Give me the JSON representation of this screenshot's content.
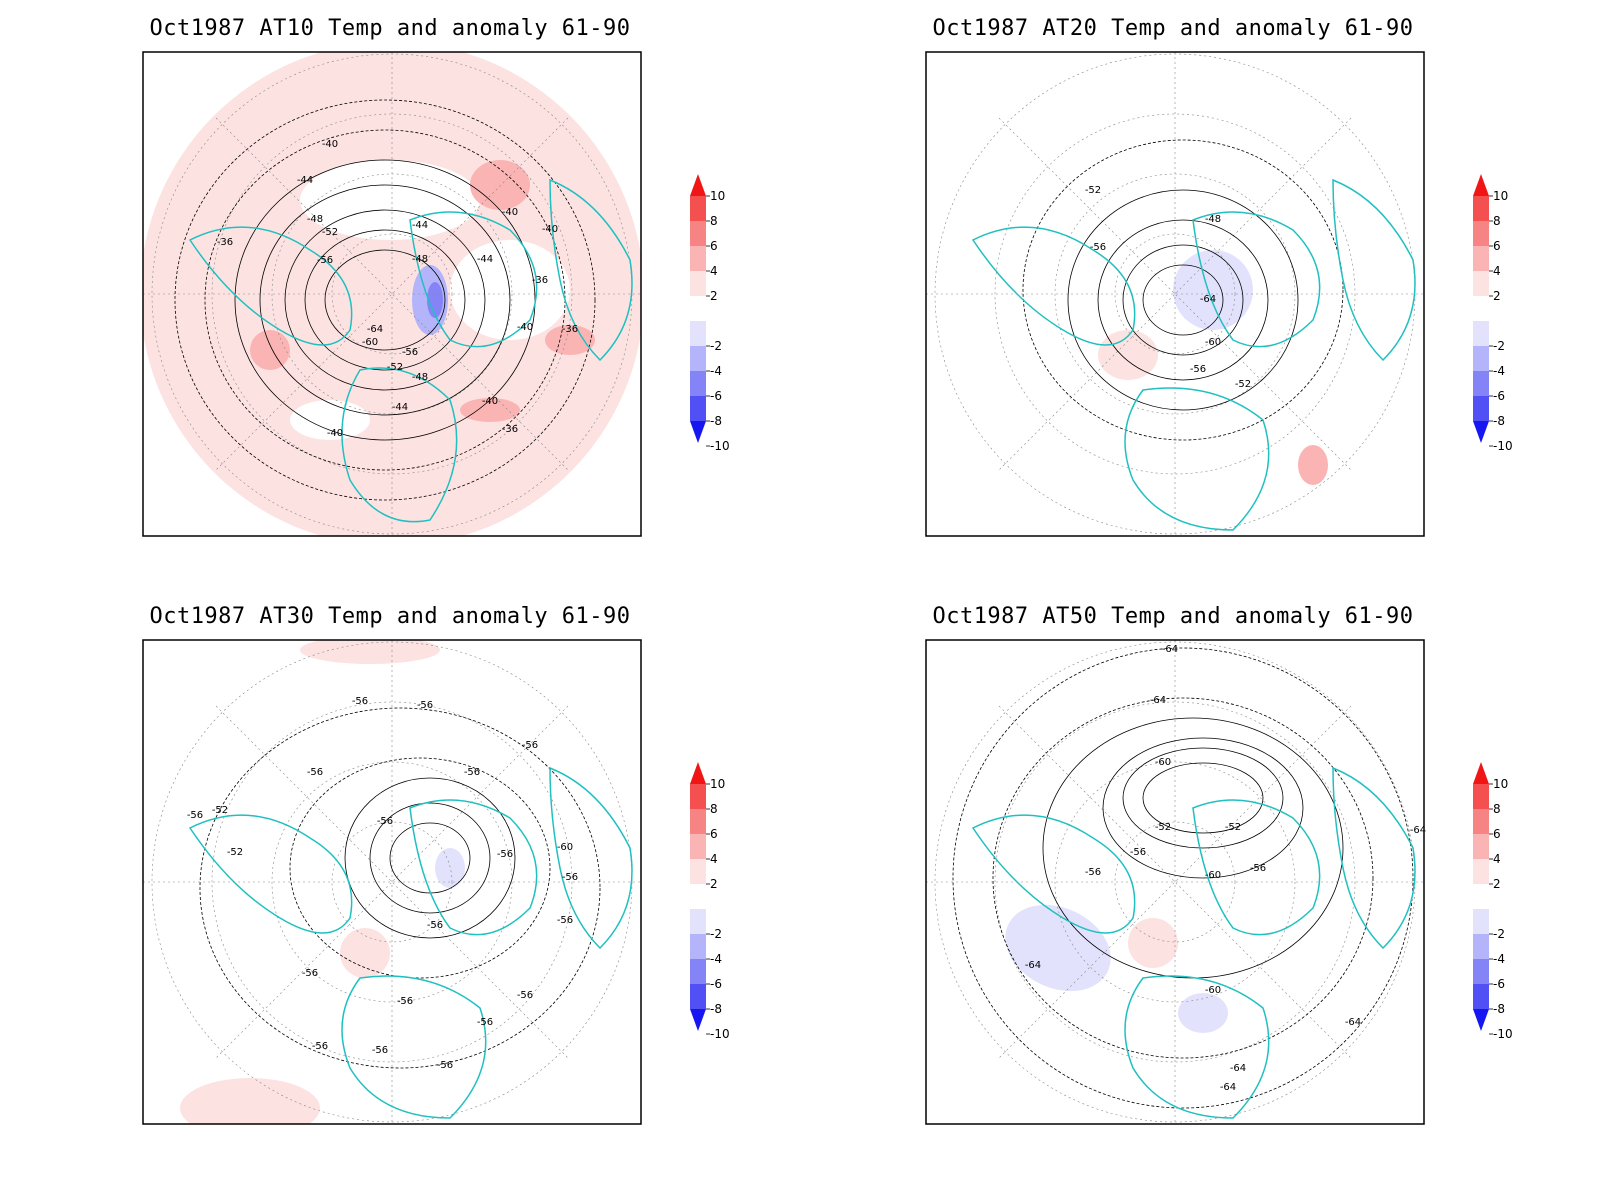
{
  "figure": {
    "panels": [
      {
        "id": "at10",
        "title": "Oct1987 AT10 Temp and anomaly 61-90",
        "contour_labels": [
          "-40",
          "-44",
          "-48",
          "-52",
          "-56",
          "-36",
          "-40",
          "-44",
          "-44",
          "-48",
          "-40",
          "-40",
          "-36",
          "-36",
          "-64",
          "-60",
          "-56",
          "-52",
          "-48",
          "-44",
          "-40",
          "-40",
          "-36"
        ]
      },
      {
        "id": "at20",
        "title": "Oct1987 AT20 Temp and anomaly 61-90",
        "contour_labels": [
          "-52",
          "-48",
          "-56",
          "-64",
          "-60",
          "-56",
          "-52"
        ]
      },
      {
        "id": "at30",
        "title": "Oct1987 AT30 Temp and anomaly 61-90",
        "contour_labels": [
          "-56",
          "-56",
          "-56",
          "-56",
          "-56",
          "-56",
          "-52",
          "-52",
          "-56",
          "-56",
          "-60",
          "-56",
          "-56",
          "-56",
          "-56",
          "-56",
          "-56",
          "-56",
          "-56",
          "-56",
          "-56"
        ]
      },
      {
        "id": "at50",
        "title": "Oct1987 AT50 Temp and anomaly 61-90",
        "contour_labels": [
          "-64",
          "-64",
          "-60",
          "-52",
          "-52",
          "-56",
          "-56",
          "-56",
          "-60",
          "-64",
          "-60",
          "-64",
          "-64",
          "-64",
          "-64"
        ]
      }
    ],
    "colorbar": {
      "labels": [
        "10",
        "8",
        "6",
        "4",
        "2",
        "-2",
        "-4",
        "-6",
        "-8",
        "-10"
      ],
      "colors": [
        "#f01616",
        "#f55050",
        "#f78484",
        "#fab4b4",
        "#fde2e2",
        "#ffffff",
        "#e2e2fd",
        "#b4b4fa",
        "#8484f7",
        "#5050f5",
        "#1616f0"
      ]
    },
    "colors": {
      "coastline": "#20c0c0",
      "contour": "#000000",
      "grid": "#888888"
    }
  }
}
